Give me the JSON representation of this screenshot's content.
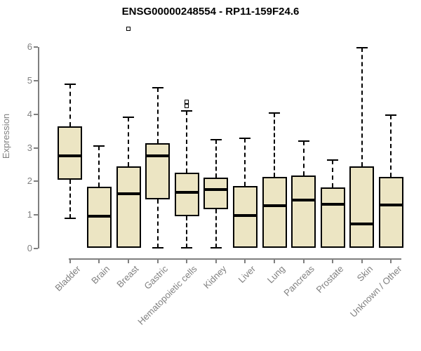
{
  "title": "ENSG00000248554 - RP11-159F24.6",
  "chart_data": {
    "type": "boxplot",
    "title": "ENSG00000248554 - RP11-159F24.6",
    "ylabel": "Expression",
    "xlabel": "",
    "ylim": [
      0,
      6
    ],
    "yticks": [
      0,
      1,
      2,
      3,
      4,
      5,
      6
    ],
    "grid": false,
    "legend": "none",
    "categories": [
      "Bladder",
      "Brain",
      "Breast",
      "Gastric",
      "Hematopoietic cells",
      "Kidney",
      "Liver",
      "Lung",
      "Pancreas",
      "Prostate",
      "Skin",
      "Unknown / Other"
    ],
    "series": [
      {
        "label": "Bladder",
        "whisker_low": 0.9,
        "q1": 2.05,
        "median": 2.76,
        "q3": 3.64,
        "whisker_high": 4.9,
        "outliers": []
      },
      {
        "label": "Brain",
        "whisker_low": 0.02,
        "q1": 0.02,
        "median": 0.96,
        "q3": 1.84,
        "whisker_high": 3.05,
        "outliers": []
      },
      {
        "label": "Breast",
        "whisker_low": 0.02,
        "q1": 0.02,
        "median": 1.63,
        "q3": 2.45,
        "whisker_high": 3.9,
        "outliers": [
          6.55
        ]
      },
      {
        "label": "Gastric",
        "whisker_low": 0.03,
        "q1": 1.47,
        "median": 2.75,
        "q3": 3.13,
        "whisker_high": 4.78,
        "outliers": []
      },
      {
        "label": "Hematopoietic cells",
        "whisker_low": 0.03,
        "q1": 0.97,
        "median": 1.67,
        "q3": 2.26,
        "whisker_high": 4.09,
        "outliers": [
          4.24,
          4.36
        ]
      },
      {
        "label": "Kidney",
        "whisker_low": 0.03,
        "q1": 1.17,
        "median": 1.76,
        "q3": 2.12,
        "whisker_high": 3.23,
        "outliers": []
      },
      {
        "label": "Liver",
        "whisker_low": 0.02,
        "q1": 0.02,
        "median": 0.99,
        "q3": 1.86,
        "whisker_high": 3.29,
        "outliers": []
      },
      {
        "label": "Lung",
        "whisker_low": 0.02,
        "q1": 0.02,
        "median": 1.27,
        "q3": 2.13,
        "whisker_high": 4.03,
        "outliers": []
      },
      {
        "label": "Pancreas",
        "whisker_low": 0.02,
        "q1": 0.02,
        "median": 1.44,
        "q3": 2.17,
        "whisker_high": 3.2,
        "outliers": []
      },
      {
        "label": "Prostate",
        "whisker_low": 0.02,
        "q1": 0.02,
        "median": 1.32,
        "q3": 1.81,
        "whisker_high": 2.63,
        "outliers": []
      },
      {
        "label": "Skin",
        "whisker_low": 0.02,
        "q1": 0.02,
        "median": 0.73,
        "q3": 2.45,
        "whisker_high": 5.97,
        "outliers": []
      },
      {
        "label": "Unknown / Other",
        "whisker_low": 0.02,
        "q1": 0.02,
        "median": 1.29,
        "q3": 2.13,
        "whisker_high": 3.97,
        "outliers": []
      }
    ],
    "colors": {
      "box_fill": "#ECE5C3",
      "box_border": "#000000",
      "median": "#000000",
      "whisker": "#000000",
      "axis": "#7f7f7f",
      "tick_label": "#808080",
      "title": "#000000",
      "background": "#ffffff"
    }
  }
}
